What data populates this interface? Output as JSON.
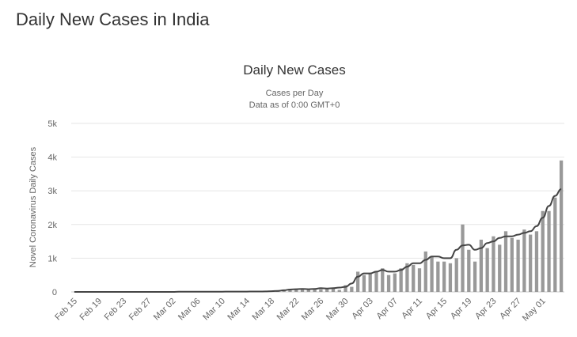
{
  "page": {
    "heading": "Daily New Cases in India"
  },
  "chart_data": {
    "type": "bar",
    "title": "Daily New Cases",
    "subtitle_line1": "Cases per Day",
    "subtitle_line2": "Data as of 0:00 GMT+0",
    "ylabel": "Novel Coronavirus Daily Cases",
    "xlabel": "",
    "ylim": [
      0,
      5000
    ],
    "y_ticks": [
      {
        "value": 0,
        "label": "0"
      },
      {
        "value": 1000,
        "label": "1k"
      },
      {
        "value": 2000,
        "label": "2k"
      },
      {
        "value": 3000,
        "label": "3k"
      },
      {
        "value": 4000,
        "label": "4k"
      },
      {
        "value": 5000,
        "label": "5k"
      }
    ],
    "grid": true,
    "legend": "none",
    "categories": [
      "Feb 15",
      "Feb 16",
      "Feb 17",
      "Feb 18",
      "Feb 19",
      "Feb 20",
      "Feb 21",
      "Feb 22",
      "Feb 23",
      "Feb 24",
      "Feb 25",
      "Feb 26",
      "Feb 27",
      "Feb 28",
      "Feb 29",
      "Mar 01",
      "Mar 02",
      "Mar 03",
      "Mar 04",
      "Mar 05",
      "Mar 06",
      "Mar 07",
      "Mar 08",
      "Mar 09",
      "Mar 10",
      "Mar 11",
      "Mar 12",
      "Mar 13",
      "Mar 14",
      "Mar 15",
      "Mar 16",
      "Mar 17",
      "Mar 18",
      "Mar 19",
      "Mar 20",
      "Mar 21",
      "Mar 22",
      "Mar 23",
      "Mar 24",
      "Mar 25",
      "Mar 26",
      "Mar 27",
      "Mar 28",
      "Mar 29",
      "Mar 30",
      "Mar 31",
      "Apr 01",
      "Apr 02",
      "Apr 03",
      "Apr 04",
      "Apr 05",
      "Apr 06",
      "Apr 07",
      "Apr 08",
      "Apr 09",
      "Apr 10",
      "Apr 11",
      "Apr 12",
      "Apr 13",
      "Apr 14",
      "Apr 15",
      "Apr 16",
      "Apr 17",
      "Apr 18",
      "Apr 19",
      "Apr 20",
      "Apr 21",
      "Apr 22",
      "Apr 23",
      "Apr 24",
      "Apr 25",
      "Apr 26",
      "Apr 27",
      "Apr 28",
      "Apr 29",
      "Apr 30",
      "May 01",
      "May 02",
      "May 03",
      "May 04"
    ],
    "x_tick_labels": [
      "Feb 15",
      "Feb 19",
      "Feb 23",
      "Feb 27",
      "Mar 02",
      "Mar 06",
      "Mar 10",
      "Mar 14",
      "Mar 18",
      "Mar 22",
      "Mar 26",
      "Mar 30",
      "Apr 03",
      "Apr 07",
      "Apr 11",
      "Apr 15",
      "Apr 19",
      "Apr 23",
      "Apr 27",
      "May 01"
    ],
    "series": [
      {
        "kind": "bar",
        "color": "#999999",
        "values": [
          0,
          0,
          0,
          0,
          0,
          0,
          0,
          0,
          0,
          0,
          0,
          0,
          0,
          0,
          0,
          1,
          2,
          25,
          2,
          1,
          3,
          3,
          5,
          4,
          15,
          12,
          10,
          10,
          10,
          20,
          10,
          15,
          20,
          30,
          60,
          80,
          100,
          80,
          90,
          70,
          80,
          110,
          100,
          60,
          200,
          150,
          600,
          500,
          550,
          600,
          700,
          500,
          550,
          700,
          850,
          800,
          700,
          1200,
          1050,
          900,
          900,
          850,
          1000,
          2000,
          1250,
          900,
          1550,
          1300,
          1650,
          1400,
          1800,
          1600,
          1550,
          1850,
          1700,
          1800,
          2400,
          2400,
          2800,
          3900
        ]
      },
      {
        "kind": "line",
        "color": "#444444",
        "values": [
          0,
          0,
          0,
          0,
          0,
          0,
          0,
          0,
          0,
          0,
          0,
          0,
          0,
          0,
          0,
          0,
          0,
          5,
          5,
          5,
          5,
          5,
          5,
          5,
          8,
          10,
          10,
          10,
          10,
          12,
          12,
          15,
          20,
          30,
          50,
          70,
          80,
          90,
          80,
          90,
          110,
          100,
          110,
          130,
          150,
          250,
          450,
          550,
          550,
          600,
          650,
          600,
          600,
          650,
          750,
          850,
          850,
          950,
          1050,
          1050,
          1000,
          1000,
          1250,
          1380,
          1400,
          1250,
          1300,
          1450,
          1500,
          1600,
          1650,
          1650,
          1700,
          1750,
          1800,
          1950,
          2200,
          2550,
          2850,
          3050
        ]
      }
    ]
  }
}
